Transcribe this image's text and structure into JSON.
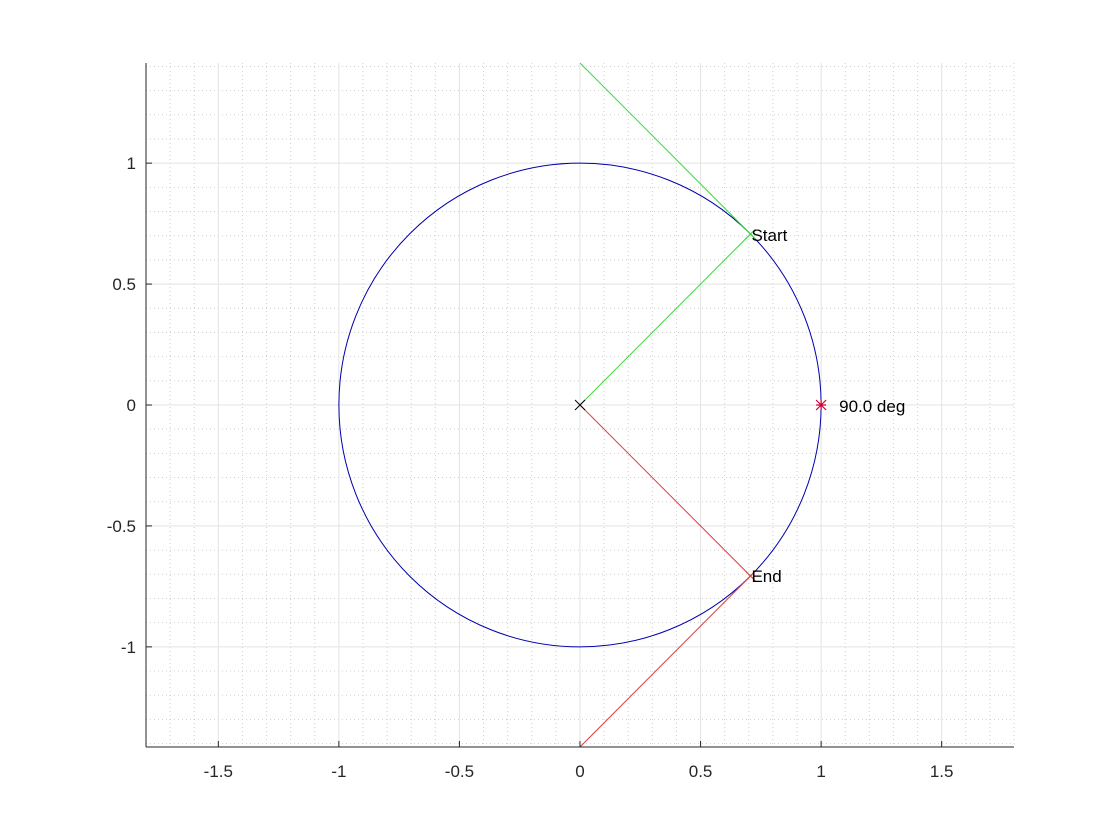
{
  "chart_data": {
    "type": "line",
    "title": "",
    "xlabel": "",
    "ylabel": "",
    "xlim": [
      -1.8,
      1.8
    ],
    "ylim": [
      -1.414,
      1.414
    ],
    "grid": true,
    "minor_grid": true,
    "xticks": [
      {
        "value": -1.5,
        "label": "-1.5"
      },
      {
        "value": -1,
        "label": "-1"
      },
      {
        "value": -0.5,
        "label": "-0.5"
      },
      {
        "value": 0,
        "label": "0"
      },
      {
        "value": 0.5,
        "label": "0.5"
      },
      {
        "value": 1,
        "label": "1"
      },
      {
        "value": 1.5,
        "label": "1.5"
      }
    ],
    "yticks": [
      {
        "value": 1,
        "label": "1"
      },
      {
        "value": 0.5,
        "label": "0.5"
      },
      {
        "value": 0,
        "label": "0"
      },
      {
        "value": -0.5,
        "label": "-0.5"
      },
      {
        "value": -1,
        "label": "-1"
      }
    ],
    "series": [
      {
        "type": "circle",
        "center": [
          0,
          0
        ],
        "radius": 1,
        "color": "#0000ad"
      },
      {
        "type": "segment",
        "points": [
          [
            0,
            0
          ],
          [
            0.707,
            0.707
          ]
        ],
        "color": "#33dd33"
      },
      {
        "type": "segment",
        "points": [
          [
            0.707,
            0.707
          ],
          [
            0,
            1.414
          ]
        ],
        "color": "#33dd33"
      },
      {
        "type": "segment",
        "points": [
          [
            0,
            0
          ],
          [
            0.707,
            -0.707
          ]
        ],
        "color": "#e03c3c"
      },
      {
        "type": "segment",
        "points": [
          [
            0.707,
            -0.707
          ],
          [
            0,
            -1.414
          ]
        ],
        "color": "#e03c3c"
      }
    ],
    "markers": [
      {
        "name": "origin",
        "x": 0,
        "y": 0,
        "symbol": "x",
        "color": "#000000"
      },
      {
        "name": "start",
        "x": 0.707,
        "y": 0.707,
        "symbol": "x",
        "color": "#33dd33"
      },
      {
        "name": "end",
        "x": 0.707,
        "y": -0.707,
        "symbol": "x",
        "color": "#e03c3c"
      },
      {
        "name": "angle-point",
        "x": 1,
        "y": 0,
        "symbol": "star",
        "color": "#cc0033"
      }
    ],
    "annotations": [
      {
        "name": "start-label",
        "text": "Start",
        "x": 0.707,
        "y": 0.707
      },
      {
        "name": "end-label",
        "text": "End",
        "x": 0.707,
        "y": -0.707
      },
      {
        "name": "angle-label",
        "text": "90.0 deg",
        "x": 1,
        "y": 0
      }
    ]
  }
}
